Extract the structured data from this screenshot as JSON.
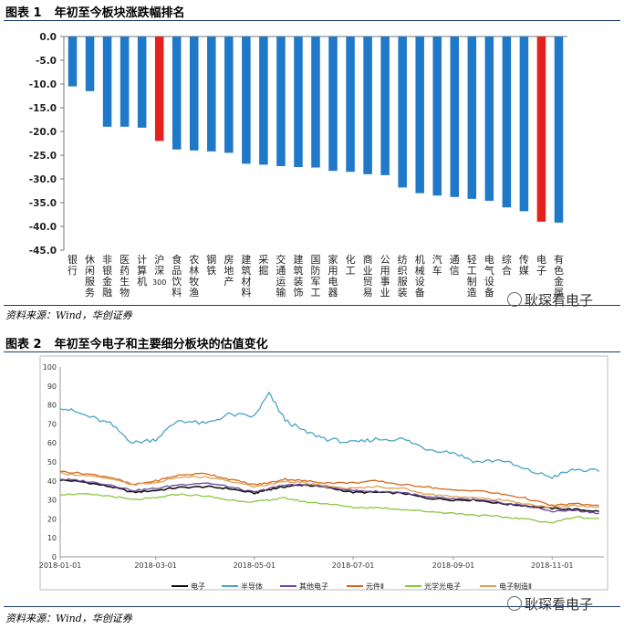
{
  "figure1": {
    "label": "图表 1",
    "title": "年初至今板块涨跌幅排名",
    "source": "资料来源：Wind，华创证券",
    "watermark": "耿琛看电子"
  },
  "figure2": {
    "label": "图表 2",
    "title": "年初至今电子和主要细分板块的估值变化",
    "source": "资料来源：Wind，华创证券",
    "watermark": "耿琛看电子"
  },
  "colors": {
    "bar_default": "#1f78c8",
    "bar_highlight": "#e5211b"
  },
  "chart_data": [
    {
      "type": "bar",
      "title": "年初至今板块涨跌幅排名",
      "categories": [
        "银行",
        "休闲服务",
        "非银金融",
        "医药生物",
        "计算机",
        "沪深300",
        "食品饮料",
        "农林牧渔",
        "钢铁",
        "房地产",
        "建筑材料",
        "采掘",
        "交通运输",
        "建筑装饰",
        "国防军工",
        "家用电器",
        "化工",
        "商业贸易",
        "公用事业",
        "纺织服装",
        "机械设备",
        "汽车",
        "通信",
        "轻工制造",
        "电气设备",
        "综合",
        "传媒",
        "电子",
        "有色金属"
      ],
      "values": [
        -10.5,
        -11.5,
        -19,
        -19,
        -19.2,
        -22,
        -23.8,
        -24,
        -24.2,
        -24.5,
        -26.8,
        -27,
        -27.3,
        -27.5,
        -27.6,
        -28.3,
        -28.5,
        -29,
        -29.2,
        -31.8,
        -33,
        -33.5,
        -33.8,
        -34.2,
        -34.6,
        -36,
        -36.8,
        -39,
        -39.2
      ],
      "highlight": [
        "沪深300",
        "电子"
      ],
      "ylim": [
        -45,
        0
      ],
      "yticks": [
        "0.0",
        "-5.0",
        "-10.0",
        "-15.0",
        "-20.0",
        "-25.0",
        "-30.0",
        "-35.0",
        "-40.0",
        "-45.0"
      ]
    },
    {
      "type": "line",
      "title": "年初至今电子和主要细分板块的估值变化",
      "ylim": [
        0,
        100
      ],
      "yticks": [
        "0",
        "10",
        "20",
        "30",
        "40",
        "50",
        "60",
        "70",
        "80",
        "90",
        "100"
      ],
      "xticks": [
        "2018-01-01",
        "2018-03-01",
        "2018-05-01",
        "2018-07-01",
        "2018-09-01",
        "2018-11-01"
      ],
      "x": [
        "2018-01-01",
        "2018-01-15",
        "2018-02-01",
        "2018-02-15",
        "2018-03-01",
        "2018-03-15",
        "2018-04-01",
        "2018-04-15",
        "2018-05-01",
        "2018-05-10",
        "2018-05-20",
        "2018-06-01",
        "2018-06-15",
        "2018-07-01",
        "2018-07-15",
        "2018-08-01",
        "2018-08-15",
        "2018-09-01",
        "2018-09-15",
        "2018-10-01",
        "2018-10-15",
        "2018-11-01",
        "2018-11-15",
        "2018-11-30"
      ],
      "series": [
        {
          "name": "电子",
          "color": "#111111",
          "values": [
            40.5,
            39.5,
            37,
            34,
            35,
            36.5,
            37,
            36,
            33.5,
            35.5,
            37,
            38,
            36.5,
            34,
            34,
            33.5,
            31,
            30,
            30,
            28,
            27,
            25.5,
            25,
            24
          ]
        },
        {
          "name": "半导体",
          "color": "#4aa3c8",
          "values": [
            79,
            75,
            70,
            60,
            62,
            72,
            70,
            75,
            74,
            86,
            72,
            66,
            62,
            60,
            62,
            62,
            57,
            55,
            50,
            51,
            46,
            42,
            46,
            45
          ]
        },
        {
          "name": "其他电子",
          "color": "#6b4a9e",
          "values": [
            41,
            40,
            38,
            35,
            36,
            38,
            39,
            37,
            34,
            36,
            38,
            38,
            37,
            35,
            34.5,
            34,
            31.5,
            30.5,
            30,
            28.5,
            27,
            24,
            24.5,
            23
          ]
        },
        {
          "name": "元件Ⅱ",
          "color": "#d2691e",
          "values": [
            45,
            44,
            42,
            38,
            40,
            43,
            44,
            41,
            38,
            39,
            41,
            40,
            39,
            39,
            40,
            38,
            37,
            35,
            35,
            33,
            31,
            27,
            28,
            27
          ]
        },
        {
          "name": "光学光电子",
          "color": "#8dc63f",
          "values": [
            33,
            33,
            32,
            30,
            31,
            33,
            32,
            30,
            29,
            30,
            31,
            29,
            28,
            26,
            26,
            25,
            24,
            23,
            22,
            21,
            20,
            18,
            21,
            20
          ]
        },
        {
          "name": "电子制造Ⅱ",
          "color": "#e0a050",
          "values": [
            44,
            43,
            41,
            38,
            39,
            42,
            42,
            40,
            37,
            38,
            40,
            39,
            37,
            36,
            37,
            36,
            33,
            32,
            31,
            30,
            28,
            26,
            27,
            26
          ]
        }
      ]
    }
  ]
}
